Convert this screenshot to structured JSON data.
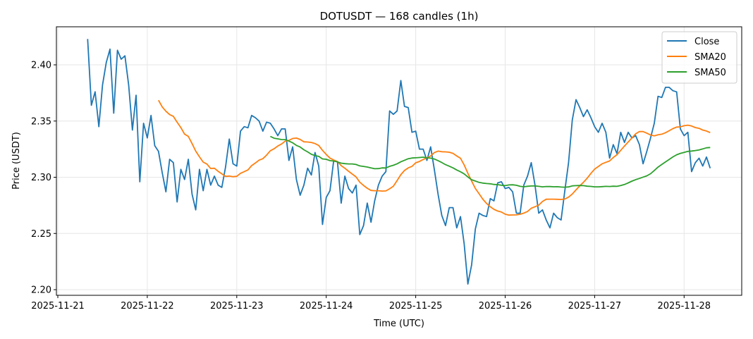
{
  "chart_data": {
    "type": "line",
    "title": "DOTUSDT — 168 candles (1h)",
    "xlabel": "Time (UTC)",
    "ylabel": "Price (USDT)",
    "start": "2025-11-21T08:00:00Z",
    "interval_hours": 1,
    "ylim": [
      2.193,
      2.432
    ],
    "yticks": [
      2.2,
      2.25,
      2.3,
      2.35,
      2.4
    ],
    "ytick_labels": [
      "2.20",
      "2.25",
      "2.30",
      "2.35",
      "2.40"
    ],
    "xtick_labels": [
      "2025-11-21",
      "2025-11-22",
      "2025-11-23",
      "2025-11-24",
      "2025-11-25",
      "2025-11-26",
      "2025-11-27",
      "2025-11-28"
    ],
    "grid": true,
    "legend_position": "top-right",
    "series": [
      {
        "name": "Close",
        "color": "#1f77b4",
        "values": [
          2.423,
          2.364,
          2.376,
          2.345,
          2.382,
          2.402,
          2.414,
          2.357,
          2.413,
          2.405,
          2.408,
          2.382,
          2.342,
          2.373,
          2.296,
          2.348,
          2.335,
          2.355,
          2.328,
          2.323,
          2.304,
          2.287,
          2.316,
          2.313,
          2.278,
          2.307,
          2.298,
          2.316,
          2.285,
          2.271,
          2.307,
          2.288,
          2.307,
          2.293,
          2.301,
          2.293,
          2.291,
          2.309,
          2.334,
          2.312,
          2.31,
          2.341,
          2.345,
          2.344,
          2.355,
          2.353,
          2.35,
          2.341,
          2.349,
          2.348,
          2.343,
          2.337,
          2.343,
          2.343,
          2.315,
          2.327,
          2.298,
          2.284,
          2.293,
          2.308,
          2.302,
          2.322,
          2.31,
          2.258,
          2.282,
          2.288,
          2.315,
          2.314,
          2.277,
          2.301,
          2.29,
          2.286,
          2.293,
          2.249,
          2.257,
          2.277,
          2.26,
          2.279,
          2.293,
          2.301,
          2.305,
          2.359,
          2.356,
          2.359,
          2.386,
          2.363,
          2.362,
          2.34,
          2.341,
          2.325,
          2.325,
          2.315,
          2.327,
          2.307,
          2.285,
          2.266,
          2.257,
          2.273,
          2.273,
          2.255,
          2.265,
          2.241,
          2.205,
          2.222,
          2.254,
          2.268,
          2.266,
          2.265,
          2.281,
          2.279,
          2.295,
          2.296,
          2.29,
          2.291,
          2.287,
          2.268,
          2.268,
          2.293,
          2.301,
          2.313,
          2.293,
          2.268,
          2.271,
          2.262,
          2.255,
          2.268,
          2.264,
          2.262,
          2.288,
          2.313,
          2.351,
          2.369,
          2.362,
          2.354,
          2.36,
          2.353,
          2.345,
          2.34,
          2.348,
          2.34,
          2.317,
          2.329,
          2.321,
          2.34,
          2.331,
          2.34,
          2.335,
          2.337,
          2.329,
          2.312,
          2.323,
          2.335,
          2.348,
          2.372,
          2.371,
          2.38,
          2.38,
          2.377,
          2.376,
          2.343,
          2.337,
          2.34,
          2.305,
          2.313,
          2.317,
          2.31,
          2.318,
          2.308
        ]
      },
      {
        "name": "SMA20",
        "color": "#ff7f0e",
        "window": 20,
        "source": "Close"
      },
      {
        "name": "SMA50",
        "color": "#2ca02c",
        "window": 50,
        "source": "Close"
      }
    ]
  }
}
